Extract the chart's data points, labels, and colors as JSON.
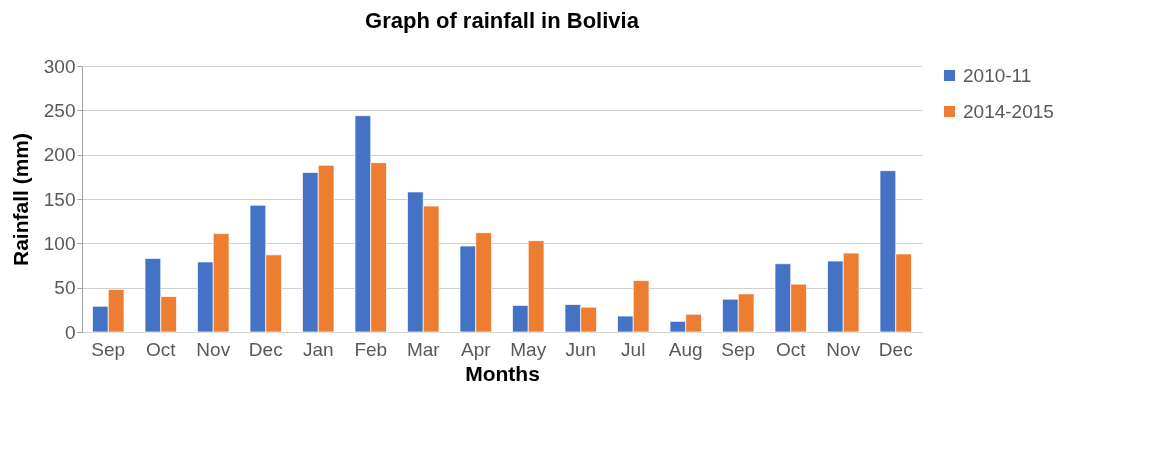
{
  "chart_data": {
    "type": "bar",
    "title": "Graph of rainfall in Bolivia",
    "xlabel": "Months",
    "ylabel": "Rainfall (mm)",
    "categories": [
      "Sep",
      "Oct",
      "Nov",
      "Dec",
      "Jan",
      "Feb",
      "Mar",
      "Apr",
      "May",
      "Jun",
      "Jul",
      "Aug",
      "Sep",
      "Oct",
      "Nov",
      "Dec"
    ],
    "series": [
      {
        "name": "2010-11",
        "color": "#4472c4",
        "values": [
          29,
          83,
          79,
          143,
          180,
          244,
          158,
          97,
          30,
          31,
          18,
          12,
          37,
          77,
          80,
          182
        ]
      },
      {
        "name": "2014-2015",
        "color": "#ed7d31",
        "values": [
          48,
          40,
          111,
          87,
          188,
          191,
          142,
          112,
          103,
          28,
          58,
          20,
          43,
          54,
          89,
          88
        ]
      }
    ],
    "ylim": [
      0,
      300
    ],
    "yticks": [
      0,
      50,
      100,
      150,
      200,
      250,
      300
    ],
    "grid": "y",
    "legend": "right"
  }
}
